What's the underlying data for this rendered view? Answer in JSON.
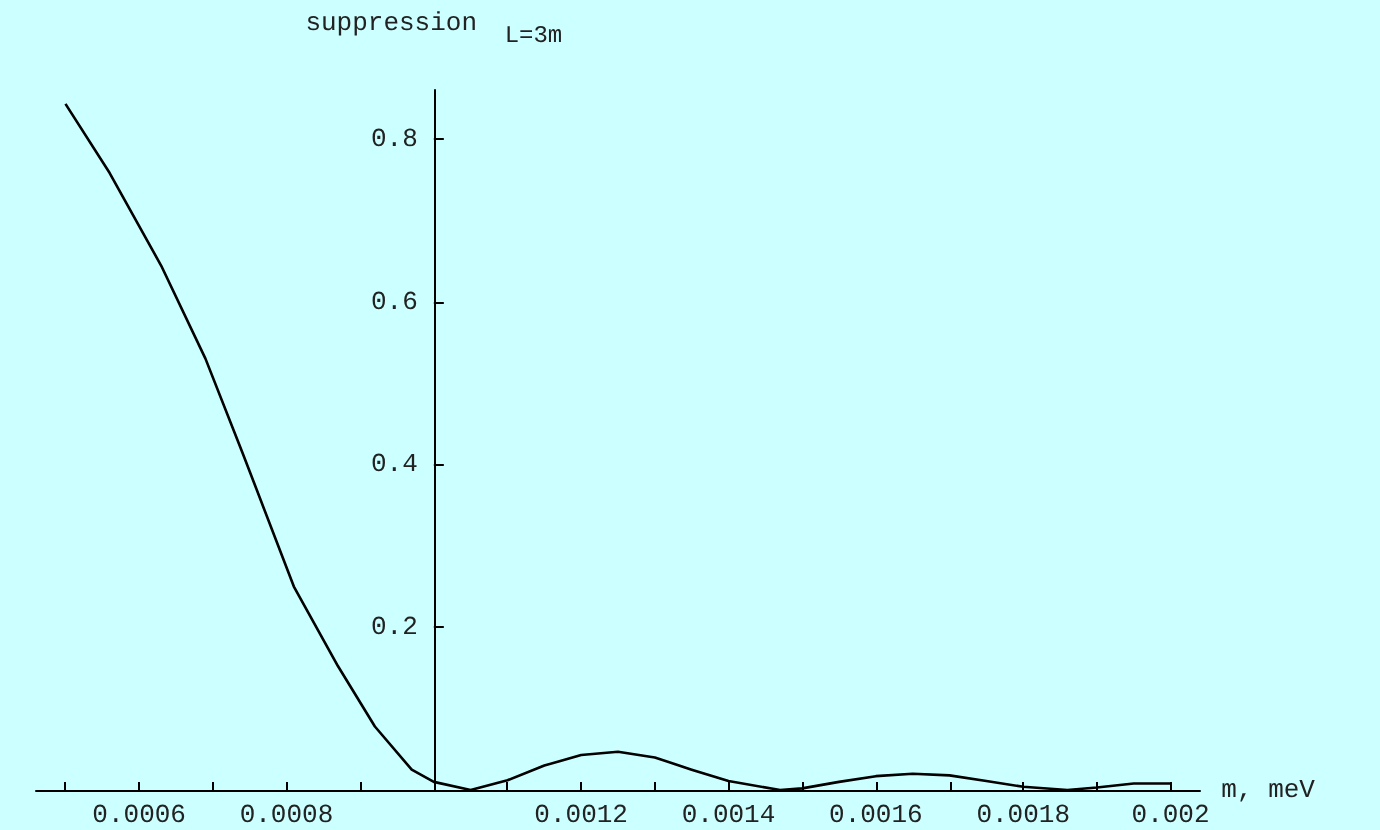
{
  "chart_data": {
    "type": "line",
    "title": "suppression $_{L=3m}$",
    "xlabel": "m, meV",
    "x": [
      0.0005,
      0.00056,
      0.00063,
      0.00069,
      0.00074,
      0.00081,
      0.00087,
      0.00092,
      0.00097,
      0.001,
      0.00105,
      0.0011,
      0.00115,
      0.0012,
      0.00125,
      0.0013,
      0.00135,
      0.0014,
      0.00147,
      0.0015,
      0.00155,
      0.0016,
      0.00165,
      0.0017,
      0.00175,
      0.0018,
      0.00186,
      0.0019,
      0.00195,
      0.002
    ],
    "series": [
      {
        "color": "#000000",
        "values": [
          0.843,
          0.758,
          0.644,
          0.53,
          0.415,
          0.25,
          0.152,
          0.078,
          0.025,
          0.01,
          0,
          0.012,
          0.03,
          0.043,
          0.047,
          0.04,
          0.025,
          0.011,
          0,
          0.002,
          0.01,
          0.017,
          0.02,
          0.018,
          0.011,
          0.004,
          0,
          0.003,
          0.008,
          0.008
        ]
      }
    ],
    "xlim": [
      0.00046,
      0.00204
    ],
    "ylim": [
      0,
      0.86
    ],
    "xticks": [
      {
        "value": 0.0005,
        "label": null
      },
      0.0006,
      {
        "value": 0.0007,
        "label": null
      },
      0.0008,
      {
        "value": 0.0009,
        "label": null
      },
      {
        "value": 0.001,
        "label": null
      },
      {
        "value": 0.0011,
        "label": null
      },
      0.0012,
      {
        "value": 0.0013,
        "label": null
      },
      0.0014,
      {
        "value": 0.0015,
        "label": null
      },
      0.0016,
      {
        "value": 0.0017,
        "label": null
      },
      0.0018,
      {
        "value": 0.0019,
        "label": null
      },
      0.002
    ],
    "yticks": [
      0.2,
      0.4,
      0.6,
      0.8
    ],
    "grid": false,
    "marker": "none",
    "line_style": "solid"
  }
}
